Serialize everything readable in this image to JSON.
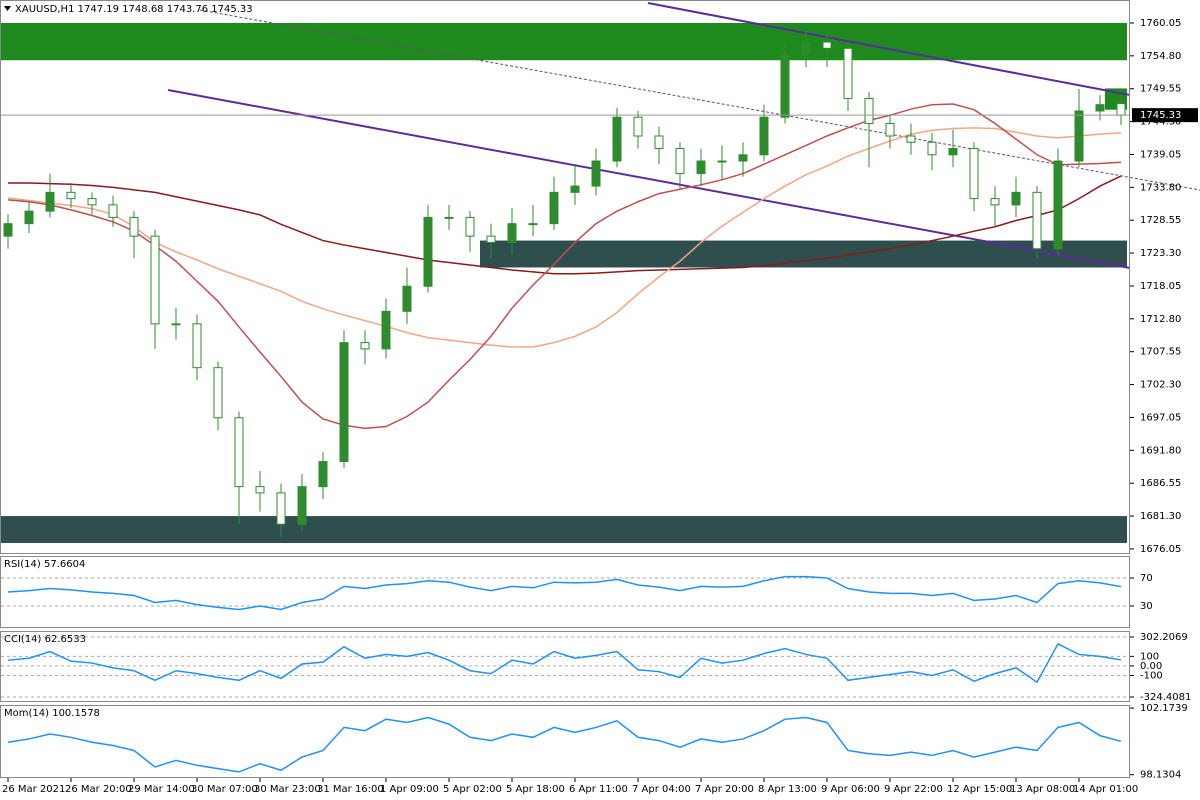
{
  "chart_data": [
    {
      "type": "candlestick",
      "symbol": "XAUUSD,H1",
      "categories": [
        "26 Mar 2021",
        null,
        null,
        "26 Mar 20:00",
        null,
        null,
        "29 Mar 14:00",
        null,
        null,
        "30 Mar 07:00",
        null,
        null,
        "30 Mar 23:00",
        null,
        null,
        "31 Mar 16:00",
        null,
        null,
        "1 Apr 09:00",
        null,
        null,
        "5 Apr 02:00",
        null,
        null,
        "5 Apr 18:00",
        null,
        null,
        "6 Apr 11:00",
        null,
        null,
        "7 Apr 04:00",
        null,
        null,
        "7 Apr 20:00",
        null,
        null,
        "8 Apr 13:00",
        null,
        null,
        "9 Apr 06:00",
        null,
        null,
        "9 Apr 22:00",
        null,
        null,
        "12 Apr 15:00",
        null,
        null,
        "13 Apr 08:00",
        null,
        null,
        "14 Apr 01:00",
        null,
        null
      ],
      "open": [
        1726,
        1728,
        1730,
        1733,
        1732,
        1731,
        1729,
        1726,
        1712,
        1712,
        1705,
        1697,
        1686,
        1685,
        1680,
        1686,
        1690,
        1709,
        1708,
        1714,
        1718,
        1729,
        1729,
        1726,
        1725,
        1728,
        1728,
        1733,
        1734,
        1738,
        1745,
        1742,
        1740,
        1736,
        1738,
        1738,
        1739,
        1745,
        1755,
        1757,
        1756,
        1748,
        1744,
        1742,
        1741,
        1739,
        1740,
        1732,
        1731,
        1733,
        1724,
        1738,
        1746,
        1747.19
      ],
      "high": [
        1729.5,
        1731.5,
        1736,
        1734.5,
        1733,
        1732.5,
        1730,
        1727,
        1714.5,
        1713.5,
        1706,
        1698,
        1688.5,
        1686.5,
        1688,
        1691.5,
        1711,
        1711,
        1716,
        1721,
        1731,
        1731,
        1730,
        1728,
        1730.5,
        1731,
        1735.5,
        1737.5,
        1740,
        1746.5,
        1746,
        1743.5,
        1741,
        1740,
        1740.5,
        1741,
        1747,
        1757,
        1759,
        1758.5,
        1757,
        1749,
        1745.5,
        1744,
        1742.5,
        1743,
        1741,
        1734,
        1735.5,
        1734,
        1740,
        1749.5,
        1748.5,
        1748.68
      ],
      "low": [
        1724,
        1726.5,
        1729,
        1730.5,
        1729.5,
        1727.5,
        1722.5,
        1708,
        1709.5,
        1703,
        1695,
        1680,
        1682,
        1678,
        1679,
        1684,
        1689,
        1705.5,
        1706.5,
        1712,
        1717,
        1727,
        1723.5,
        1722.5,
        1723,
        1726,
        1727,
        1731,
        1732.5,
        1737,
        1740,
        1737.5,
        1733.5,
        1734,
        1735,
        1735.5,
        1738,
        1744,
        1753,
        1753,
        1746,
        1737,
        1740,
        1739,
        1736.5,
        1737,
        1730,
        1727.5,
        1729,
        1722.5,
        1723,
        1737,
        1744.5,
        1743.76
      ],
      "close": [
        1728,
        1730,
        1733,
        1732,
        1731,
        1729,
        1726,
        1712,
        1712,
        1705,
        1697,
        1686,
        1685,
        1680,
        1686,
        1690,
        1709,
        1708,
        1714,
        1718,
        1729,
        1729,
        1726,
        1725,
        1728,
        1728,
        1733,
        1734,
        1738,
        1745,
        1742,
        1740,
        1736,
        1738,
        1738,
        1739,
        1745,
        1755,
        1757,
        1756,
        1748,
        1744,
        1742,
        1741,
        1739,
        1740,
        1732,
        1731,
        1733,
        1724,
        1738,
        1746,
        1747,
        1745.33
      ],
      "up_color": "#2e8b2e",
      "down_color": "#ffffff",
      "series": [
        {
          "color": "#8b1a1a",
          "values": [
            1734.5,
            1734.5,
            1734.4,
            1734.3,
            1734.1,
            1733.8,
            1733.4,
            1733,
            1732.3,
            1731.6,
            1730.9,
            1730.2,
            1729.4,
            1727.9,
            1726.6,
            1725.3,
            1724.6,
            1724,
            1723.4,
            1722.8,
            1722.2,
            1721.8,
            1721.4,
            1721,
            1720.6,
            1720.3,
            1720,
            1720,
            1720.1,
            1720.3,
            1720.5,
            1720.6,
            1720.7,
            1720.8,
            1720.9,
            1721,
            1721.3,
            1721.7,
            1722.1,
            1722.5,
            1723,
            1723.5,
            1724,
            1724.6,
            1725.3,
            1726,
            1726.8,
            1727.5,
            1728.5,
            1729.3,
            1730.2,
            1732,
            1734,
            1735.6
          ]
        },
        {
          "color": "#f4a582",
          "values": [
            1732.1,
            1731.7,
            1731.3,
            1730.9,
            1730.4,
            1729.5,
            1727.5,
            1725,
            1723.5,
            1722.2,
            1720.8,
            1719.6,
            1718.4,
            1717.2,
            1715.6,
            1714.4,
            1713.4,
            1712.5,
            1711.6,
            1710.6,
            1709.8,
            1709.4,
            1709,
            1708.6,
            1708.3,
            1708.3,
            1709,
            1710,
            1711.5,
            1713.8,
            1716.8,
            1719.5,
            1722,
            1725,
            1727.6,
            1729.8,
            1732,
            1734,
            1735.8,
            1737.2,
            1738.8,
            1740,
            1741.2,
            1742.3,
            1742.9,
            1743.2,
            1743.3,
            1743.2,
            1742.6,
            1742,
            1741.7,
            1742,
            1742.3,
            1742.5
          ]
        },
        {
          "color": "#c0504d",
          "values": [
            1731.8,
            1731.5,
            1731,
            1730.2,
            1729.3,
            1728.3,
            1726.8,
            1724.5,
            1722,
            1718.8,
            1715.6,
            1711.5,
            1707.5,
            1703.6,
            1699.5,
            1696.8,
            1695.8,
            1695.3,
            1695.6,
            1697.2,
            1699.5,
            1703,
            1706.3,
            1710,
            1714.5,
            1718.2,
            1721.5,
            1725,
            1728,
            1730,
            1731.5,
            1732.8,
            1733.5,
            1734.2,
            1735,
            1736,
            1737.5,
            1739,
            1740.5,
            1742,
            1743.3,
            1744.5,
            1745.3,
            1746.3,
            1747,
            1747.1,
            1746.2,
            1744,
            1741.5,
            1739,
            1737.4,
            1737.5,
            1737.6,
            1737.8
          ]
        }
      ],
      "zones": [
        {
          "from": 1754.1,
          "to": 1760.05,
          "color": "#1e8a1e"
        },
        {
          "from": 1721,
          "to": 1725.3,
          "color": "#2f4f4f"
        },
        {
          "from": 1677,
          "to": 1681.3,
          "color": "#2f4f4f"
        },
        {
          "from": 1746.2,
          "to": 1749.6,
          "color": "#1e8a1e"
        }
      ],
      "ylim": [
        1675.4,
        1763.4
      ],
      "yticks": [
        1760.05,
        {
          "value": 1754.8,
          "label": "1754.80"
        },
        1749.55,
        {
          "value": 1744.3,
          "label": "1744.30"
        },
        1739.05,
        {
          "value": 1733.8,
          "label": "1733.80"
        },
        1728.55,
        {
          "value": 1723.3,
          "label": "1723.30"
        },
        1718.05,
        {
          "value": 1712.8,
          "label": "1712.80"
        },
        1707.55,
        {
          "value": 1702.3,
          "label": "1702.30"
        },
        1697.05,
        {
          "value": 1691.8,
          "label": "1691.80"
        },
        1686.55,
        {
          "value": 1681.3,
          "label": "1681.30"
        },
        1676.05
      ]
    },
    {
      "type": "line",
      "grid": true,
      "series": [
        {
          "name": "RSI(14)",
          "color": "#1e90ff",
          "values": [
            50,
            52,
            55,
            53,
            50,
            48,
            45,
            35,
            38,
            32,
            28,
            25,
            30,
            25,
            35,
            40,
            58,
            55,
            60,
            62,
            66,
            64,
            57,
            52,
            58,
            56,
            64,
            63,
            64,
            68,
            60,
            57,
            52,
            58,
            57,
            58,
            66,
            72,
            72,
            70,
            55,
            50,
            48,
            48,
            45,
            48,
            38,
            40,
            45,
            35,
            62,
            66,
            63,
            57.6604
          ]
        }
      ],
      "ylim": [
        0,
        100
      ],
      "yticks": [
        70,
        30
      ]
    },
    {
      "type": "line",
      "grid": true,
      "series": [
        {
          "name": "CCI(14)",
          "color": "#1e90ff",
          "values": [
            60,
            80,
            150,
            50,
            30,
            -20,
            -50,
            -150,
            -50,
            -80,
            -120,
            -150,
            -50,
            -130,
            20,
            40,
            200,
            80,
            120,
            100,
            140,
            60,
            -50,
            -80,
            60,
            20,
            150,
            80,
            110,
            150,
            -40,
            -60,
            -120,
            80,
            30,
            60,
            130,
            180,
            120,
            80,
            -150,
            -120,
            -90,
            -60,
            -100,
            -40,
            -160,
            -80,
            -20,
            -170,
            230,
            120,
            100,
            62.6533
          ]
        }
      ],
      "ylim": [
        -366.2,
        354.4
      ],
      "yticks": [
        302.2069,
        100,
        {
          "value": 0,
          "label": "0.00"
        },
        -100,
        -324.4081
      ]
    },
    {
      "type": "line",
      "grid": false,
      "series": [
        {
          "name": "Mom(14)",
          "color": "#1e90ff",
          "values": [
            100.1,
            100.3,
            100.6,
            100.4,
            100.1,
            99.9,
            99.6,
            98.6,
            99,
            98.7,
            98.5,
            98.3,
            98.8,
            98.4,
            99.2,
            99.6,
            101,
            100.8,
            101.5,
            101.3,
            101.6,
            101.2,
            100.4,
            100.2,
            100.6,
            100.4,
            101,
            100.7,
            101,
            101.4,
            100.4,
            100.2,
            99.8,
            100.3,
            100.1,
            100.3,
            100.8,
            101.5,
            101.6,
            101.3,
            99.6,
            99.4,
            99.3,
            99.5,
            99.3,
            99.6,
            99.2,
            99.5,
            99.8,
            99.6,
            101,
            101.3,
            100.5,
            100.1578
          ]
        }
      ],
      "ylim": [
        97.99,
        102.3
      ],
      "yticks": [
        102.1739,
        98.1304
      ]
    }
  ]
}
